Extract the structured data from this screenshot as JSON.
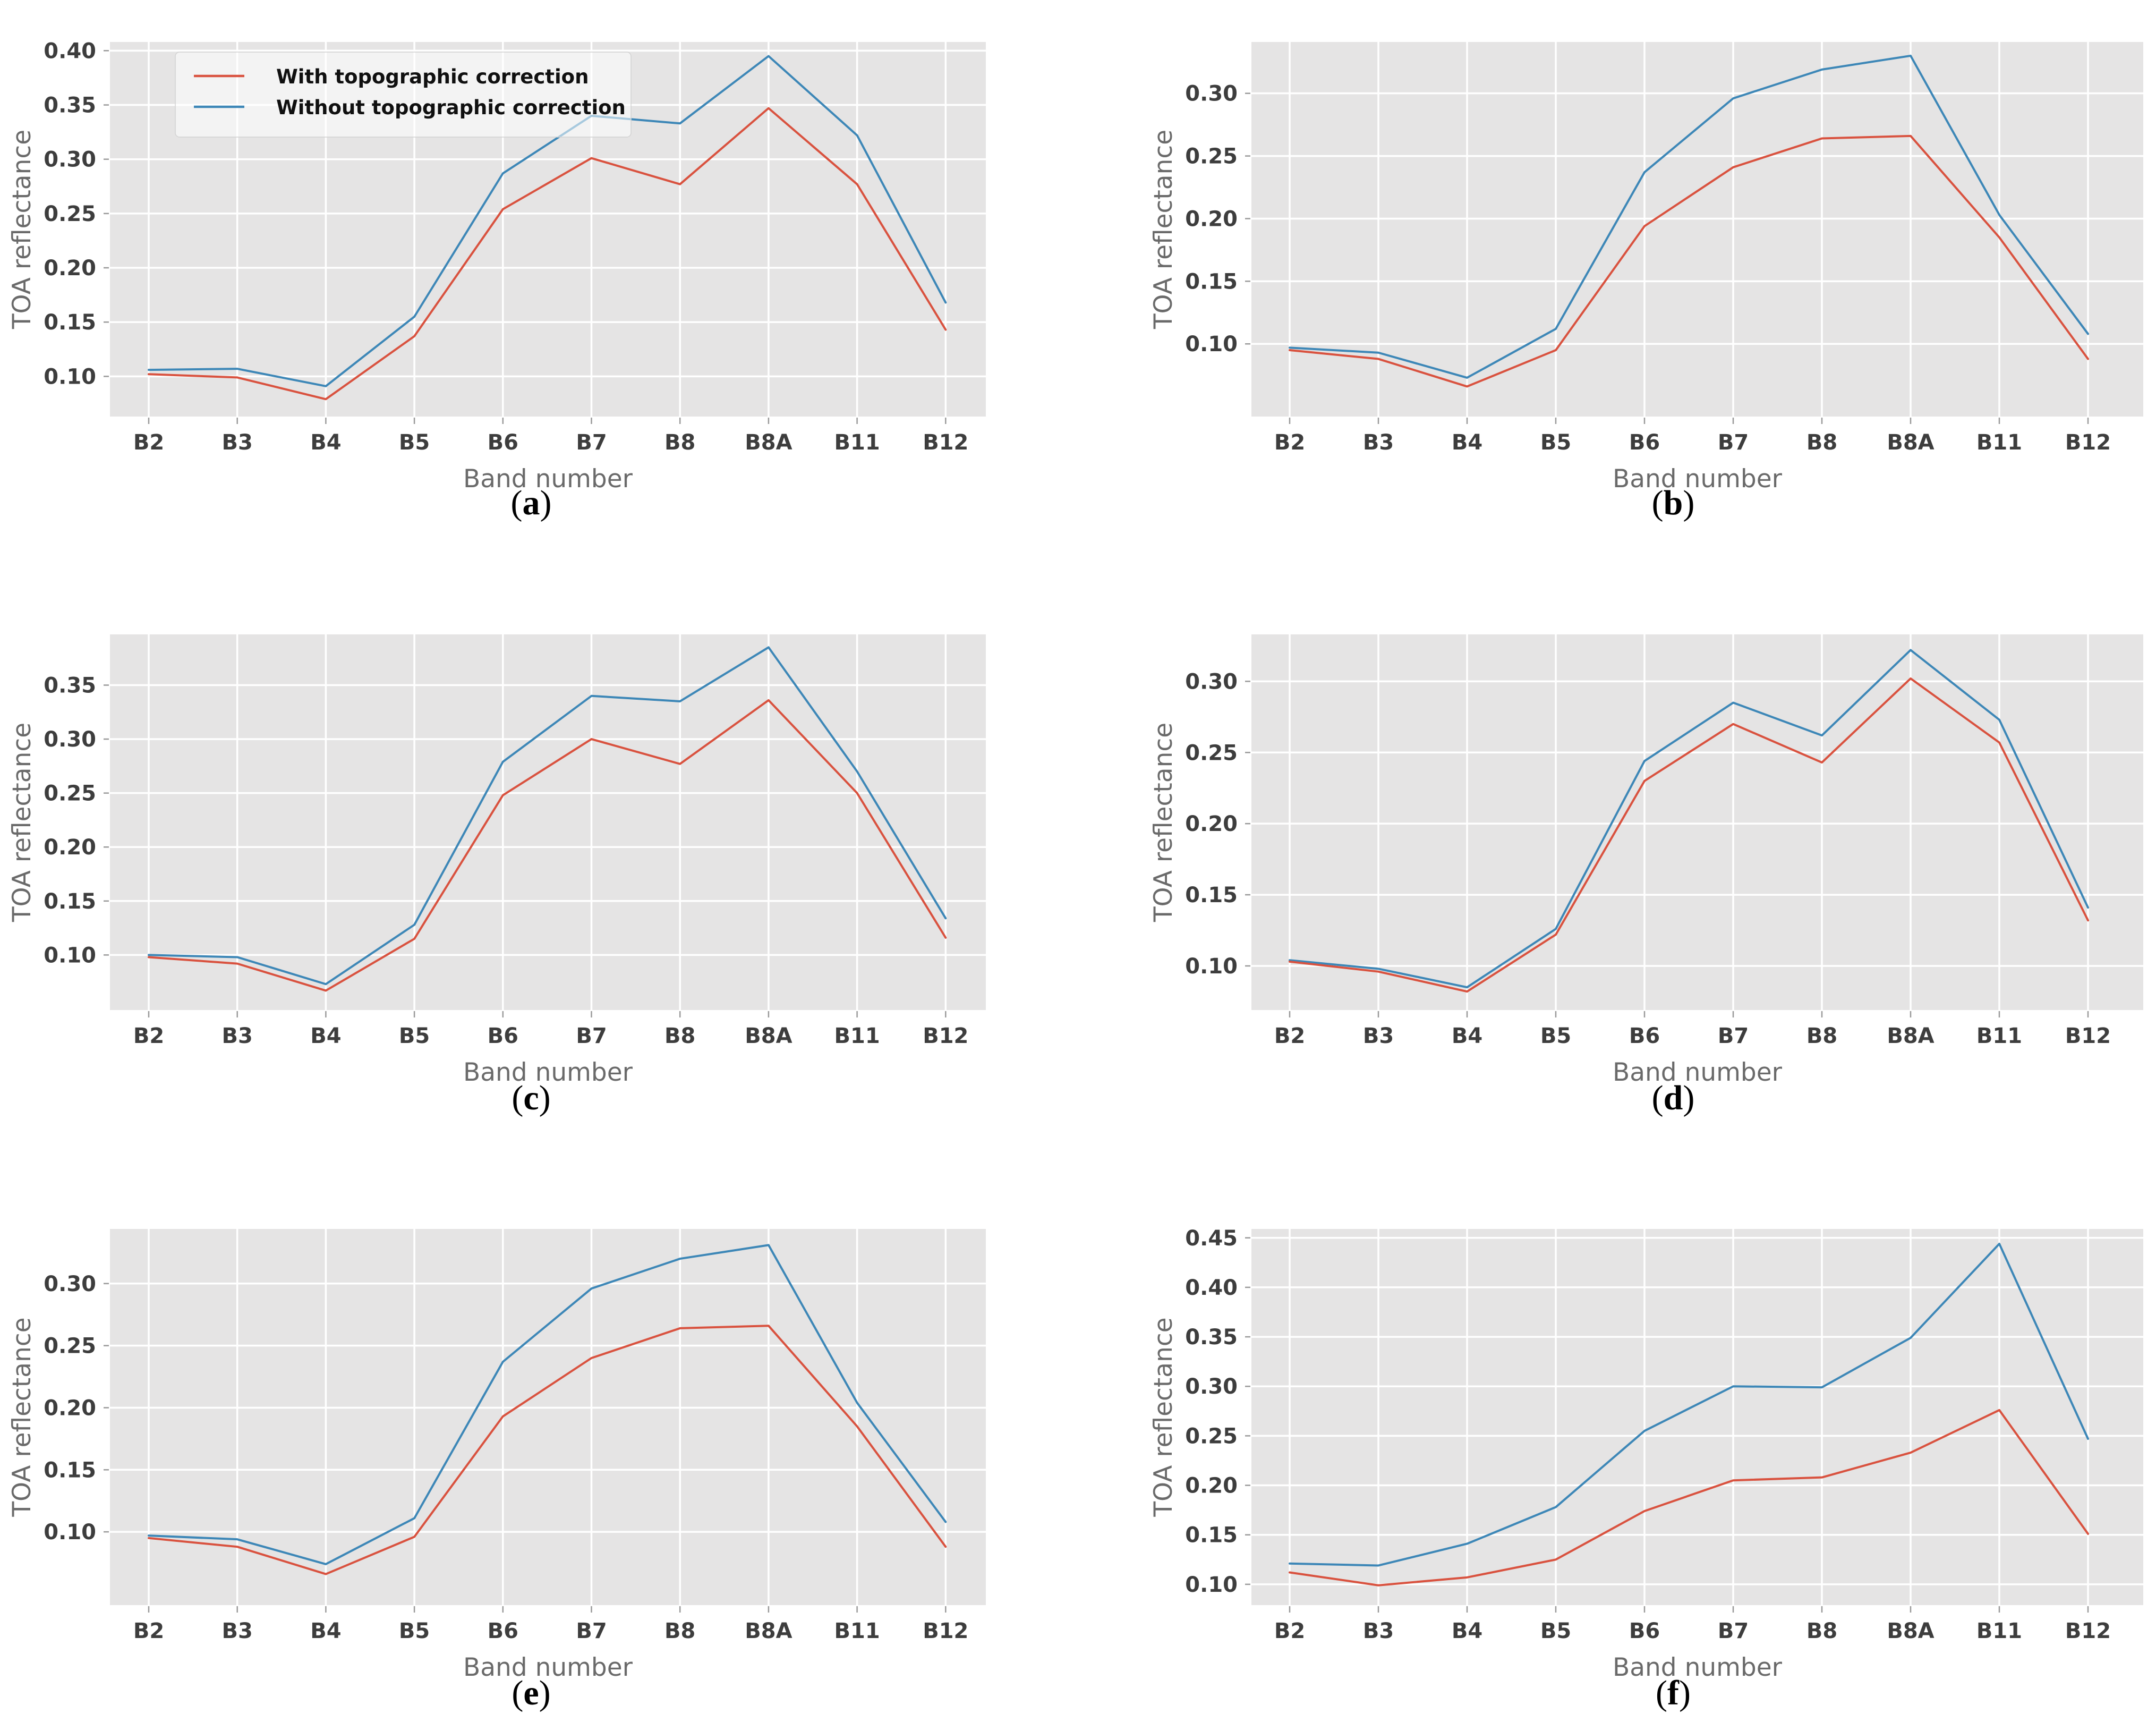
{
  "figure": {
    "xlabel": "Band number",
    "ylabel": "TOA reflectance",
    "legend": {
      "with_label": "With topographic correction",
      "without_label": "Without topographic correction"
    },
    "style": {
      "with_color": "#d9523f",
      "without_color": "#3d87b7",
      "plot_bg": "#e5e4e4",
      "grid_color": "#ffffff",
      "tick_color": "#9a9a9a",
      "tick_label_color": "#3d3d3d",
      "axis_label_color": "#6a6a6a",
      "legend_text_color": "#101010"
    }
  },
  "chart_data": [
    {
      "id": "a",
      "type": "line",
      "caption_open": "(",
      "caption_letter": "a",
      "caption_close": ")",
      "xlabel": "Band number",
      "ylabel": "TOA reflectance",
      "categories": [
        "B2",
        "B3",
        "B4",
        "B5",
        "B6",
        "B7",
        "B8",
        "B8A",
        "B11",
        "B12"
      ],
      "ylim": [
        0.063,
        0.408
      ],
      "yticks": [
        0.1,
        0.15,
        0.2,
        0.25,
        0.3,
        0.35,
        0.4
      ],
      "grid": true,
      "legend_position": "upper left",
      "series": [
        {
          "name": "With topographic correction",
          "color": "#d9523f",
          "values": [
            0.102,
            0.099,
            0.079,
            0.137,
            0.254,
            0.301,
            0.277,
            0.347,
            0.277,
            0.143
          ]
        },
        {
          "name": "Without topographic correction",
          "color": "#3d87b7",
          "values": [
            0.106,
            0.107,
            0.091,
            0.155,
            0.287,
            0.34,
            0.333,
            0.395,
            0.322,
            0.168
          ]
        }
      ]
    },
    {
      "id": "b",
      "type": "line",
      "caption_open": "(",
      "caption_letter": "b",
      "caption_close": ")",
      "xlabel": "Band number",
      "ylabel": "TOA reflectance",
      "categories": [
        "B2",
        "B3",
        "B4",
        "B5",
        "B6",
        "B7",
        "B8",
        "B8A",
        "B11",
        "B12"
      ],
      "ylim": [
        0.042,
        0.341
      ],
      "yticks": [
        0.1,
        0.15,
        0.2,
        0.25,
        0.3
      ],
      "grid": true,
      "legend_position": null,
      "series": [
        {
          "name": "With topographic correction",
          "color": "#d9523f",
          "values": [
            0.095,
            0.088,
            0.066,
            0.095,
            0.194,
            0.241,
            0.264,
            0.266,
            0.185,
            0.088
          ]
        },
        {
          "name": "Without topographic correction",
          "color": "#3d87b7",
          "values": [
            0.097,
            0.093,
            0.073,
            0.112,
            0.237,
            0.296,
            0.319,
            0.33,
            0.203,
            0.108
          ]
        }
      ]
    },
    {
      "id": "c",
      "type": "line",
      "caption_open": "(",
      "caption_letter": "c",
      "caption_close": ")",
      "xlabel": "Band number",
      "ylabel": "TOA reflectance",
      "categories": [
        "B2",
        "B3",
        "B4",
        "B5",
        "B6",
        "B7",
        "B8",
        "B8A",
        "B11",
        "B12"
      ],
      "ylim": [
        0.049,
        0.397
      ],
      "yticks": [
        0.1,
        0.15,
        0.2,
        0.25,
        0.3,
        0.35
      ],
      "grid": true,
      "legend_position": null,
      "series": [
        {
          "name": "With topographic correction",
          "color": "#d9523f",
          "values": [
            0.098,
            0.092,
            0.067,
            0.115,
            0.248,
            0.3,
            0.277,
            0.336,
            0.25,
            0.116
          ]
        },
        {
          "name": "Without topographic correction",
          "color": "#3d87b7",
          "values": [
            0.1,
            0.098,
            0.073,
            0.128,
            0.279,
            0.34,
            0.335,
            0.385,
            0.27,
            0.134
          ]
        }
      ]
    },
    {
      "id": "d",
      "type": "line",
      "caption_open": "(",
      "caption_letter": "d",
      "caption_close": ")",
      "xlabel": "Band number",
      "ylabel": "TOA reflectance",
      "categories": [
        "B2",
        "B3",
        "B4",
        "B5",
        "B6",
        "B7",
        "B8",
        "B8A",
        "B11",
        "B12"
      ],
      "ylim": [
        0.069,
        0.333
      ],
      "yticks": [
        0.1,
        0.15,
        0.2,
        0.25,
        0.3
      ],
      "grid": true,
      "legend_position": null,
      "series": [
        {
          "name": "With topographic correction",
          "color": "#d9523f",
          "values": [
            0.103,
            0.096,
            0.082,
            0.122,
            0.23,
            0.27,
            0.243,
            0.302,
            0.257,
            0.132
          ]
        },
        {
          "name": "Without topographic correction",
          "color": "#3d87b7",
          "values": [
            0.104,
            0.098,
            0.085,
            0.126,
            0.244,
            0.285,
            0.262,
            0.322,
            0.273,
            0.141
          ]
        }
      ]
    },
    {
      "id": "e",
      "type": "line",
      "caption_open": "(",
      "caption_letter": "e",
      "caption_close": ")",
      "xlabel": "Band number",
      "ylabel": "TOA reflectance",
      "categories": [
        "B2",
        "B3",
        "B4",
        "B5",
        "B6",
        "B7",
        "B8",
        "B8A",
        "B11",
        "B12"
      ],
      "ylim": [
        0.041,
        0.344
      ],
      "yticks": [
        0.1,
        0.15,
        0.2,
        0.25,
        0.3
      ],
      "grid": true,
      "legend_position": null,
      "series": [
        {
          "name": "With topographic correction",
          "color": "#d9523f",
          "values": [
            0.095,
            0.088,
            0.066,
            0.096,
            0.193,
            0.24,
            0.264,
            0.266,
            0.185,
            0.088
          ]
        },
        {
          "name": "Without topographic correction",
          "color": "#3d87b7",
          "values": [
            0.097,
            0.094,
            0.074,
            0.111,
            0.237,
            0.296,
            0.32,
            0.331,
            0.204,
            0.108
          ]
        }
      ]
    },
    {
      "id": "f",
      "type": "line",
      "caption_open": "(",
      "caption_letter": "f",
      "caption_close": ")",
      "xlabel": "Band number",
      "ylabel": "TOA reflectance",
      "categories": [
        "B2",
        "B3",
        "B4",
        "B5",
        "B6",
        "B7",
        "B8",
        "B8A",
        "B11",
        "B12"
      ],
      "ylim": [
        0.079,
        0.459
      ],
      "yticks": [
        0.1,
        0.15,
        0.2,
        0.25,
        0.3,
        0.35,
        0.4,
        0.45
      ],
      "grid": true,
      "legend_position": null,
      "series": [
        {
          "name": "With topographic correction",
          "color": "#d9523f",
          "values": [
            0.112,
            0.099,
            0.107,
            0.125,
            0.174,
            0.205,
            0.208,
            0.233,
            0.276,
            0.151
          ]
        },
        {
          "name": "Without topographic correction",
          "color": "#3d87b7",
          "values": [
            0.121,
            0.119,
            0.141,
            0.178,
            0.255,
            0.3,
            0.299,
            0.349,
            0.444,
            0.247
          ]
        }
      ]
    }
  ]
}
